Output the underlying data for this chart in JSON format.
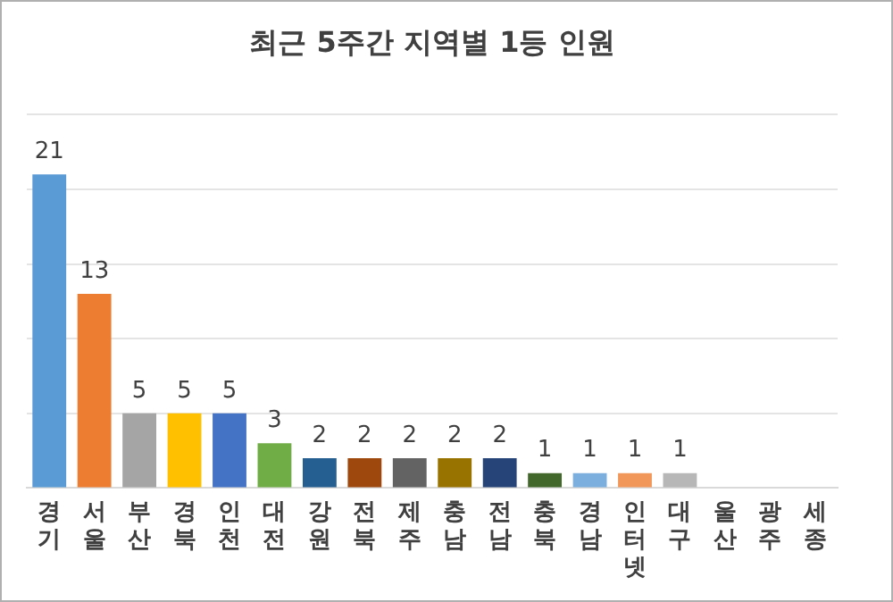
{
  "chart_data": {
    "type": "bar",
    "title": "최근 5주간 지역별 1등 인원",
    "categories": [
      "경기",
      "서울",
      "부산",
      "경북",
      "인천",
      "대전",
      "강원",
      "전북",
      "제주",
      "충남",
      "전남",
      "충북",
      "경남",
      "인터넷",
      "대구",
      "울산",
      "광주",
      "세종"
    ],
    "values": [
      21,
      13,
      5,
      5,
      5,
      3,
      2,
      2,
      2,
      2,
      2,
      1,
      1,
      1,
      1,
      0,
      0,
      0
    ],
    "value_labels": [
      "21",
      "13",
      "5",
      "5",
      "5",
      "3",
      "2",
      "2",
      "2",
      "2",
      "2",
      "1",
      "1",
      "1",
      "1",
      null,
      null,
      null
    ],
    "colors": [
      "#5b9bd5",
      "#ed7d31",
      "#a5a5a5",
      "#ffc000",
      "#4472c4",
      "#70ad47",
      "#255e91",
      "#9e480e",
      "#636363",
      "#997300",
      "#264478",
      "#43682b",
      "#7cafdd",
      "#f1975a",
      "#b7b7b7",
      "#ffcd33",
      "#698ed0",
      "#8cc168"
    ],
    "ylim": [
      0,
      25
    ],
    "yticks": [
      {
        "value": 0,
        "label": null
      },
      {
        "value": 5,
        "label": null
      },
      {
        "value": 10,
        "label": null
      },
      {
        "value": 15,
        "label": null
      },
      {
        "value": 20,
        "label": null
      },
      {
        "value": 25,
        "label": null
      }
    ],
    "grid": "y",
    "legend": false
  }
}
